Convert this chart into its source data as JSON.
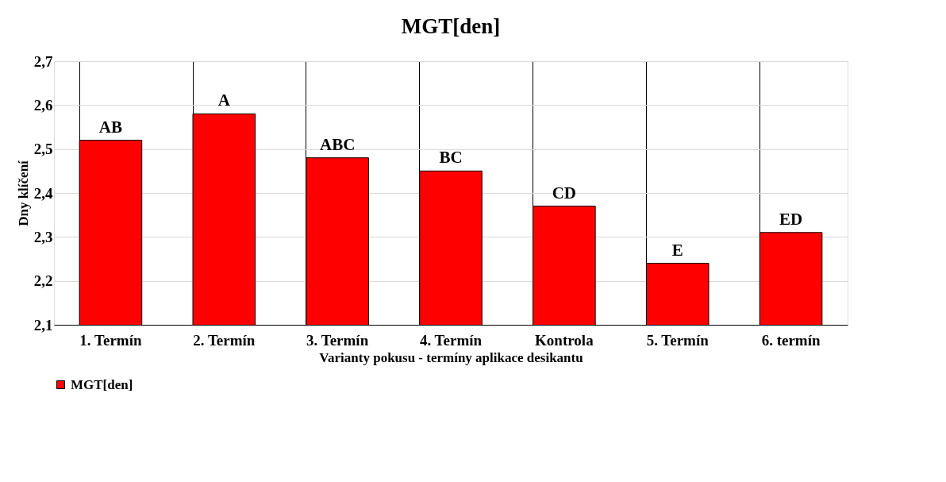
{
  "chart_data": {
    "type": "bar",
    "title": "MGT[den]",
    "xlabel": "Varianty pokusu - termíny aplikace desikantu",
    "ylabel": "Dny klíčení",
    "categories": [
      "1. Termín",
      "2. Termín",
      "3. Termín",
      "4. Termín",
      "Kontrola",
      "5. Termín",
      "6. termín"
    ],
    "series": [
      {
        "name": "MGT[den]",
        "color": "#ff0000",
        "values": [
          2.52,
          2.58,
          2.48,
          2.45,
          2.37,
          2.24,
          2.31
        ],
        "value_labels": [
          "AB",
          "A",
          "ABC",
          "BC",
          "CD",
          "E",
          "ED"
        ]
      }
    ],
    "ylim": [
      2.1,
      2.7
    ],
    "yticks": [
      {
        "value": 2.1,
        "label": "2,1"
      },
      {
        "value": 2.2,
        "label": "2,2"
      },
      {
        "value": 2.3,
        "label": "2,3"
      },
      {
        "value": 2.4,
        "label": "2,4"
      },
      {
        "value": 2.5,
        "label": "2,5"
      },
      {
        "value": 2.6,
        "label": "2,6"
      },
      {
        "value": 2.7,
        "label": "2,7"
      }
    ],
    "grid": true,
    "legend": "bottom"
  }
}
